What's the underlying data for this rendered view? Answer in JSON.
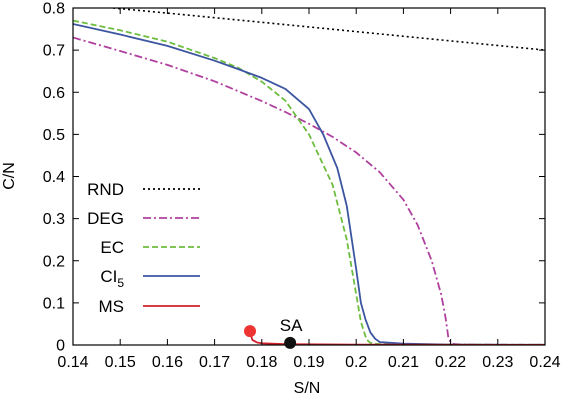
{
  "chart_data": {
    "type": "line",
    "xlabel": "S/N",
    "ylabel": "C/N",
    "xlim": [
      0.14,
      0.24
    ],
    "ylim": [
      0,
      0.8
    ],
    "xticks": [
      "0.14",
      "0.15",
      "0.16",
      "0.17",
      "0.18",
      "0.19",
      "0.2",
      "0.21",
      "0.22",
      "0.23",
      "0.24"
    ],
    "yticks": [
      "0",
      "0.1",
      "0.2",
      "0.3",
      "0.4",
      "0.5",
      "0.6",
      "0.7",
      "0.8"
    ],
    "grid": false,
    "legend_position": "lower-left",
    "series": [
      {
        "name": "RND",
        "label_text": "RND",
        "color": "#000000",
        "style": "dotted",
        "x": [
          0.1485,
          0.16,
          0.18,
          0.2,
          0.22,
          0.24
        ],
        "y": [
          0.8,
          0.788,
          0.766,
          0.744,
          0.722,
          0.7
        ]
      },
      {
        "name": "DEG",
        "label_text": "DEG",
        "color": "#b0409f",
        "style": "dash-dot",
        "x": [
          0.14,
          0.15,
          0.16,
          0.17,
          0.18,
          0.185,
          0.19,
          0.195,
          0.2,
          0.205,
          0.21,
          0.213,
          0.216,
          0.218,
          0.219,
          0.2195,
          0.22,
          0.2205,
          0.221,
          0.222,
          0.225,
          0.23,
          0.24
        ],
        "y": [
          0.73,
          0.698,
          0.665,
          0.626,
          0.579,
          0.553,
          0.525,
          0.494,
          0.457,
          0.41,
          0.345,
          0.285,
          0.2,
          0.12,
          0.06,
          0.02,
          0.006,
          0.003,
          0.002,
          0.0015,
          0.001,
          0.0008,
          0.0005
        ]
      },
      {
        "name": "EC",
        "label_text": "EC",
        "color": "#6dbd3f",
        "style": "dashed",
        "x": [
          0.14,
          0.15,
          0.16,
          0.17,
          0.175,
          0.18,
          0.185,
          0.19,
          0.195,
          0.198,
          0.2,
          0.201,
          0.202,
          0.2025,
          0.203,
          0.204,
          0.205,
          0.21,
          0.24
        ],
        "y": [
          0.77,
          0.747,
          0.72,
          0.681,
          0.658,
          0.625,
          0.58,
          0.5,
          0.38,
          0.25,
          0.12,
          0.055,
          0.02,
          0.01,
          0.005,
          0.003,
          0.002,
          0.001,
          0.0005
        ]
      },
      {
        "name": "CI5",
        "label_text": "CI",
        "label_sub": "5",
        "color": "#3c55a0",
        "style": "solid",
        "x": [
          0.14,
          0.15,
          0.16,
          0.17,
          0.175,
          0.18,
          0.185,
          0.19,
          0.193,
          0.196,
          0.198,
          0.2,
          0.201,
          0.202,
          0.203,
          0.204,
          0.205,
          0.21,
          0.22,
          0.24
        ],
        "y": [
          0.762,
          0.737,
          0.71,
          0.675,
          0.655,
          0.634,
          0.608,
          0.56,
          0.5,
          0.42,
          0.33,
          0.18,
          0.1,
          0.06,
          0.03,
          0.015,
          0.007,
          0.003,
          0.001,
          0.0005
        ]
      },
      {
        "name": "MS",
        "label_text": "MS",
        "color": "#d0202a",
        "style": "solid",
        "x": [
          0.1775,
          0.178,
          0.179,
          0.18,
          0.185,
          0.2,
          0.22,
          0.24
        ],
        "y": [
          0.03,
          0.012,
          0.006,
          0.004,
          0.002,
          0.001,
          0.0005,
          0.0002
        ]
      }
    ],
    "markers": [
      {
        "name": "MS-start",
        "x": 0.1775,
        "y": 0.033,
        "color": "#ee3333"
      },
      {
        "name": "SA",
        "x": 0.186,
        "y": 0.005,
        "color": "#111111",
        "label": "SA"
      }
    ]
  }
}
